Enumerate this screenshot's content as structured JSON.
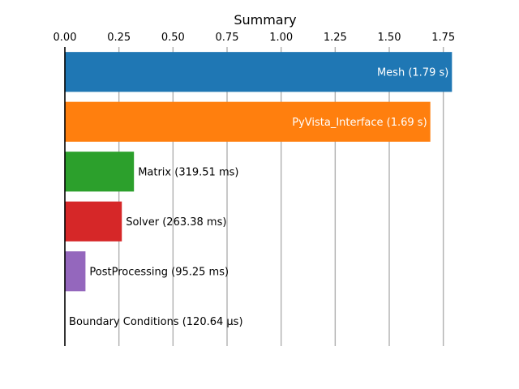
{
  "chart_data": {
    "type": "bar",
    "orientation": "horizontal",
    "title": "Summary",
    "xlabel": "",
    "ylabel": "",
    "xlim": [
      0,
      1.8
    ],
    "x_ticks": [
      "0.00",
      "0.25",
      "0.50",
      "0.75",
      "1.00",
      "1.25",
      "1.50",
      "1.75"
    ],
    "x_tick_values": [
      0,
      0.25,
      0.5,
      0.75,
      1.0,
      1.25,
      1.5,
      1.75
    ],
    "x_axis_position": "top",
    "grid": "vertical",
    "legend": "none",
    "categories": [
      "Mesh",
      "PyVista_Interface",
      "Matrix",
      "Solver",
      "PostProcessing",
      "Boundary Conditions"
    ],
    "values": [
      1.79,
      1.69,
      0.31951,
      0.26338,
      0.09525,
      0.00012064
    ],
    "unit": "s",
    "bar_labels": [
      "Mesh (1.79 s)",
      "PyVista_Interface (1.69 s)",
      "Matrix (319.51 ms)",
      "Solver (263.38 ms)",
      "PostProcessing (95.25 ms)",
      "Boundary Conditions (120.64 µs)"
    ],
    "label_placement": [
      "inside",
      "inside",
      "outside",
      "outside",
      "outside",
      "outside"
    ],
    "colors": [
      "#1f77b4",
      "#ff7f0e",
      "#2ca02c",
      "#d62728",
      "#9467bd",
      "#8c564b"
    ]
  }
}
